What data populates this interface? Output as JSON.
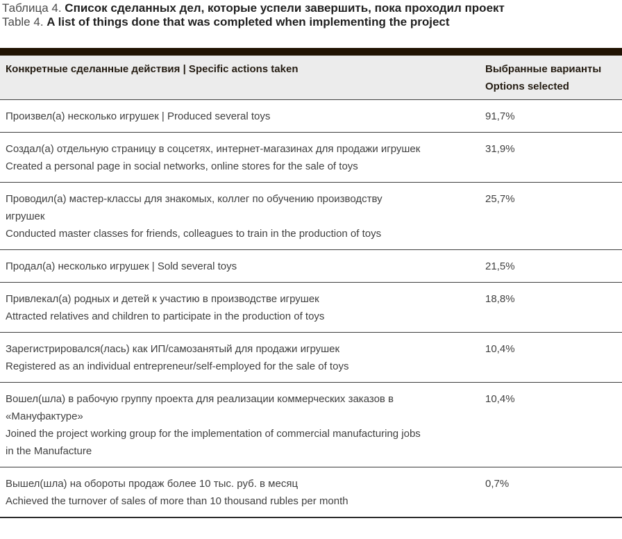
{
  "title": {
    "ru_prefix": "Таблица 4.",
    "ru_main": "Список сделанных дел, которые успели завершить, пока проходил проект",
    "en_prefix": "Table 4.",
    "en_main": "A list of things done that was completed when implementing the project"
  },
  "table": {
    "header": {
      "col1": "Конкретные сделанные действия  |  Specific actions taken",
      "col2_line1": "Выбранные варианты",
      "col2_line2": "Options selected"
    },
    "rows": [
      {
        "lines": [
          "Произвел(а) несколько игрушек  |  Produced several toys"
        ],
        "value": "91,7%"
      },
      {
        "lines": [
          "Создал(а) отдельную страницу в соцсетях, интернет-магазинах для продажи игрушек",
          "Created a personal page in social networks, online stores for the sale of toys"
        ],
        "value": "31,9%"
      },
      {
        "lines": [
          "Проводил(а) мастер-классы для знакомых, коллег по обучению производству игрушек",
          "Conducted master classes for friends, colleagues to train in the production of toys"
        ],
        "value": "25,7%"
      },
      {
        "lines": [
          "Продал(а) несколько игрушек  |  Sold several toys"
        ],
        "value": "21,5%"
      },
      {
        "lines": [
          "Привлекал(а) родных и детей к участию в производстве игрушек",
          "Attracted relatives and children to participate in the production of toys"
        ],
        "value": "18,8%"
      },
      {
        "lines": [
          "Зарегистрировался(лась) как ИП/самозанятый для продажи игрушек",
          "Registered as an individual entrepreneur/self-employed for the sale of toys"
        ],
        "value": "10,4%"
      },
      {
        "lines": [
          "Вошел(шла) в рабочую группу проекта для реализации коммерческих заказов в «Мануфактуре»",
          "Joined the project working group for the implementation of commercial manufacturing jobs in the Manufacture"
        ],
        "value": "10,4%"
      },
      {
        "lines": [
          "Вышел(шла) на обороты продаж более 10 тыс. руб. в месяц",
          "Achieved the turnover of sales of more than 10 thousand rubles per month"
        ],
        "value": "0,7%"
      }
    ]
  },
  "colors": {
    "topbar": "#211303",
    "header-bg": "#ececec",
    "header-text": "#241c12",
    "body-text": "#3f3f3f",
    "title-prefix": "#4b4b4b",
    "title-bold": "#1f1f1f",
    "row-border": "#3c3c3c",
    "bottom-border": "#2b2b2b",
    "page-bg": "#ffffff"
  }
}
